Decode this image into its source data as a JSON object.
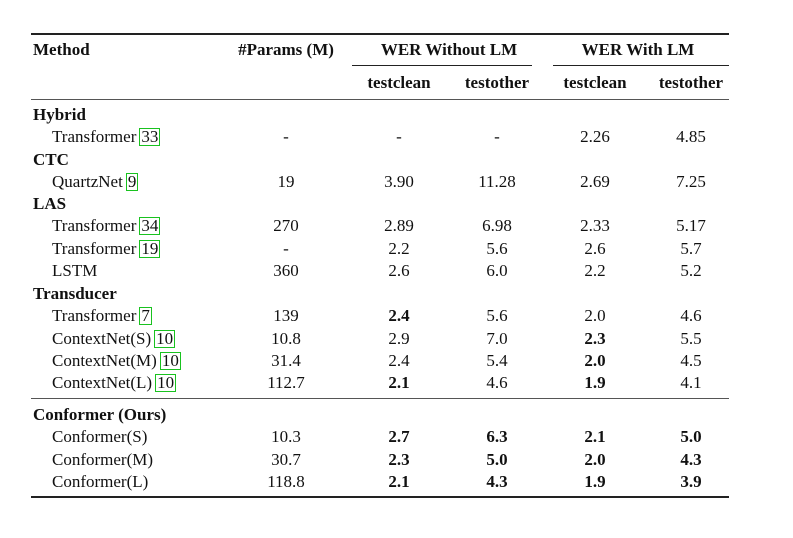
{
  "header": {
    "method": "Method",
    "params": "#Params (M)",
    "wer_without_lm": "WER Without LM",
    "wer_with_lm": "WER With LM",
    "testclean": "testclean",
    "testother": "testother"
  },
  "sections": [
    {
      "title": "Hybrid",
      "rows": [
        {
          "model": "Transformer",
          "ref": "33",
          "params": "-",
          "wo_clean": "-",
          "wo_other": "-",
          "w_clean": "2.26",
          "w_other": "4.85"
        }
      ]
    },
    {
      "title": "CTC",
      "rows": [
        {
          "model": "QuartzNet",
          "ref": "9",
          "params": "19",
          "wo_clean": "3.90",
          "wo_other": "11.28",
          "w_clean": "2.69",
          "w_other": "7.25"
        }
      ]
    },
    {
      "title": "LAS",
      "rows": [
        {
          "model": "Transformer",
          "ref": "34",
          "params": "270",
          "wo_clean": "2.89",
          "wo_other": "6.98",
          "w_clean": "2.33",
          "w_other": "5.17"
        },
        {
          "model": "Transformer",
          "ref": "19",
          "params": "-",
          "wo_clean": "2.2",
          "wo_other": "5.6",
          "w_clean": "2.6",
          "w_other": "5.7"
        },
        {
          "model": "LSTM",
          "ref": "",
          "params": "360",
          "wo_clean": "2.6",
          "wo_other": "6.0",
          "w_clean": "2.2",
          "w_other": "5.2"
        }
      ]
    },
    {
      "title": "Transducer",
      "rows": [
        {
          "model": "Transformer",
          "ref": "7",
          "params": "139",
          "wo_clean": "2.4",
          "wo_other": "5.6",
          "w_clean": "2.0",
          "w_other": "4.6"
        },
        {
          "model": "ContextNet(S)",
          "ref": "10",
          "params": "10.8",
          "wo_clean": "2.9",
          "wo_other": "7.0",
          "w_clean": "2.3",
          "w_other": "5.5"
        },
        {
          "model": "ContextNet(M)",
          "ref": "10",
          "params": "31.4",
          "wo_clean": "2.4",
          "wo_other": "5.4",
          "w_clean": "2.0",
          "w_other": "4.5"
        },
        {
          "model": "ContextNet(L)",
          "ref": "10",
          "params": "112.7",
          "wo_clean": "2.1",
          "wo_other": "4.6",
          "w_clean": "1.9",
          "w_other": "4.1"
        }
      ]
    },
    {
      "title": "Conformer (Ours)",
      "rows": [
        {
          "model": "Conformer(S)",
          "ref": "",
          "params": "10.3",
          "wo_clean": "2.7",
          "wo_other": "6.3",
          "w_clean": "2.1",
          "w_other": "5.0"
        },
        {
          "model": "Conformer(M)",
          "ref": "",
          "params": "30.7",
          "wo_clean": "2.3",
          "wo_other": "5.0",
          "w_clean": "2.0",
          "w_other": "4.3"
        },
        {
          "model": "Conformer(L)",
          "ref": "",
          "params": "118.8",
          "wo_clean": "2.1",
          "wo_other": "4.3",
          "w_clean": "1.9",
          "w_other": "3.9"
        }
      ]
    }
  ],
  "bold_cells": [
    "3.0.wo_clean",
    "3.1.w_clean",
    "3.2.w_clean",
    "3.3.wo_clean",
    "3.3.w_clean",
    "4.0.wo_clean",
    "4.0.wo_other",
    "4.0.w_clean",
    "4.0.w_other",
    "4.1.wo_clean",
    "4.1.wo_other",
    "4.1.w_clean",
    "4.1.w_other",
    "4.2.wo_clean",
    "4.2.wo_other",
    "4.2.w_clean",
    "4.2.w_other"
  ]
}
